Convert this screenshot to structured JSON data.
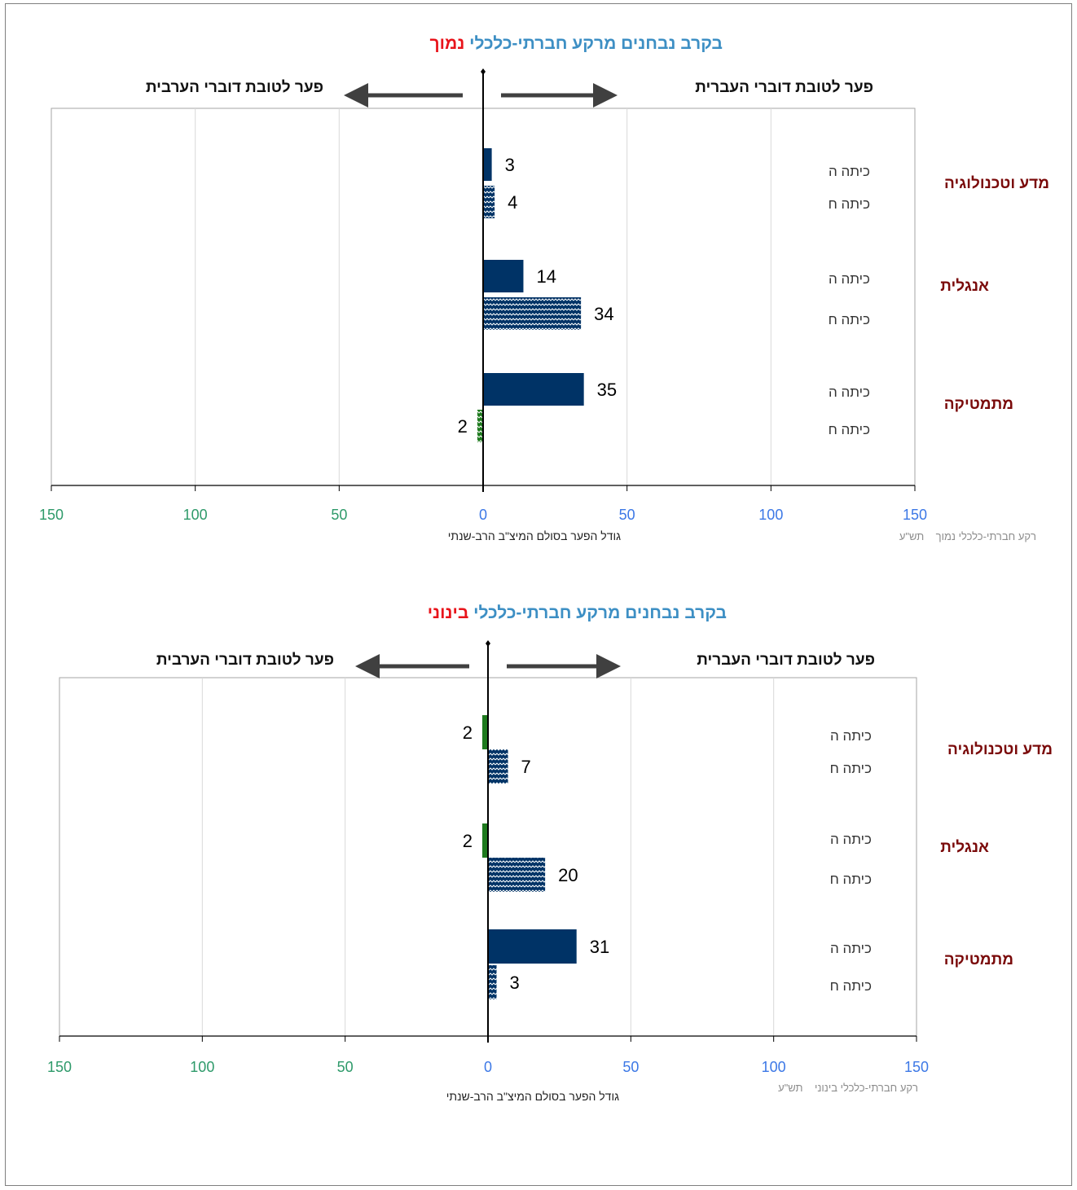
{
  "chart_data": [
    {
      "type": "bar",
      "title_main": "בקרב נבחנים מרקע חברתי-כלכלי",
      "title_highlight": "נמוך",
      "direction_right_label": "פער לטובת דוברי העברית",
      "direction_left_label": "פער לטובת דוברי הערבית",
      "xlabel": "גודל הפער בסולם המיצ\"ב הרב-שנתי",
      "xlim": [
        -150,
        150
      ],
      "x_ticks": [
        -150,
        -100,
        -50,
        0,
        50,
        100,
        150
      ],
      "x_tick_labels": [
        "150",
        "100",
        "50",
        "0",
        "50",
        "100",
        "150"
      ],
      "legend": {
        "label": "רקע חברתי-כלכלי",
        "value": "נמוך",
        "year": "תש\"ע"
      },
      "groups": [
        {
          "subject": "מדע וטכנולוגיה",
          "bars": [
            {
              "grade": "כיתה ה",
              "value": 3,
              "label": "3",
              "favor": "hebrew",
              "pattern": "solid"
            },
            {
              "grade": "כיתה ח",
              "value": 4,
              "label": "4",
              "favor": "hebrew",
              "pattern": "wave"
            }
          ]
        },
        {
          "subject": "אנגלית",
          "bars": [
            {
              "grade": "כיתה ה",
              "value": 14,
              "label": "14",
              "favor": "hebrew",
              "pattern": "solid"
            },
            {
              "grade": "כיתה ח",
              "value": 34,
              "label": "34",
              "favor": "hebrew",
              "pattern": "wave"
            }
          ]
        },
        {
          "subject": "מתמטיקה",
          "bars": [
            {
              "grade": "כיתה ה",
              "value": 35,
              "label": "35",
              "favor": "hebrew",
              "pattern": "solid"
            },
            {
              "grade": "כיתה ח",
              "value": -2,
              "label": "2",
              "favor": "arabic",
              "pattern": "wave"
            }
          ]
        }
      ]
    },
    {
      "type": "bar",
      "title_main": "בקרב נבחנים מרקע חברתי-כלכלי",
      "title_highlight": "בינוני",
      "direction_right_label": "פער לטובת דוברי העברית",
      "direction_left_label": "פער לטובת דוברי הערבית",
      "xlabel": "גודל הפער בסולם המיצ\"ב הרב-שנתי",
      "xlim": [
        -150,
        150
      ],
      "x_ticks": [
        -150,
        -100,
        -50,
        0,
        50,
        100,
        150
      ],
      "x_tick_labels": [
        "150",
        "100",
        "50",
        "0",
        "50",
        "100",
        "150"
      ],
      "legend": {
        "label": "רקע חברתי-כלכלי",
        "value": "בינוני",
        "year": "תש\"ע"
      },
      "groups": [
        {
          "subject": "מדע וטכנולוגיה",
          "bars": [
            {
              "grade": "כיתה ה",
              "value": -2,
              "label": "2",
              "favor": "arabic",
              "pattern": "solid"
            },
            {
              "grade": "כיתה ח",
              "value": 7,
              "label": "7",
              "favor": "hebrew",
              "pattern": "wave"
            }
          ]
        },
        {
          "subject": "אנגלית",
          "bars": [
            {
              "grade": "כיתה ה",
              "value": -2,
              "label": "2",
              "favor": "arabic",
              "pattern": "solid"
            },
            {
              "grade": "כיתה ח",
              "value": 20,
              "label": "20",
              "favor": "hebrew",
              "pattern": "wave"
            }
          ]
        },
        {
          "subject": "מתמטיקה",
          "bars": [
            {
              "grade": "כיתה ה",
              "value": 31,
              "label": "31",
              "favor": "hebrew",
              "pattern": "solid"
            },
            {
              "grade": "כיתה ח",
              "value": 3,
              "label": "3",
              "favor": "hebrew",
              "pattern": "wave"
            }
          ]
        }
      ]
    }
  ],
  "colors": {
    "hebrew_bar": "#003366",
    "arabic_bar": "#1e7a1e",
    "title": "#3d8fc4",
    "title_highlight": "#e8141b",
    "subject": "#7a0a0a",
    "positive_ticks": "#3c78e6",
    "negative_ticks": "#2e9a6a",
    "gridline": "#d9d9d9"
  }
}
